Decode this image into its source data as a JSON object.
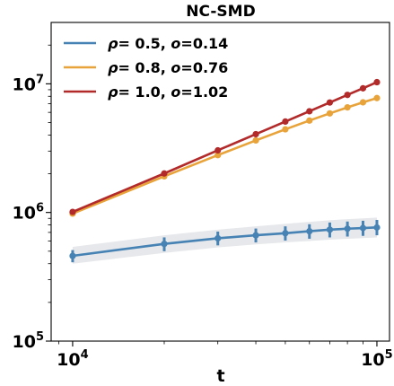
{
  "chart_data": {
    "type": "line",
    "title": "NC-SMD",
    "xlabel": "t",
    "ylabel": "",
    "xscale": "log",
    "yscale": "log",
    "xlim": [
      8500,
      110000
    ],
    "ylim": [
      100000,
      30000000
    ],
    "x_ticks": [
      {
        "value": 10000,
        "base": "10",
        "exp": "4"
      },
      {
        "value": 100000,
        "base": "10",
        "exp": "5"
      }
    ],
    "y_ticks": [
      {
        "value": 100000,
        "base": "10",
        "exp": "5"
      },
      {
        "value": 1000000,
        "base": "10",
        "exp": "6"
      },
      {
        "value": 10000000,
        "base": "10",
        "exp": "7"
      }
    ],
    "grid": false,
    "legend_position": "top-left",
    "x": [
      10000,
      20000,
      30000,
      40000,
      50000,
      60000,
      70000,
      80000,
      90000,
      100000
    ],
    "series": [
      {
        "name": "ρ= 0.5, o=0.14",
        "rho": "0.5",
        "o": "0.14",
        "color": "#4682b4",
        "values": [
          460000,
          570000,
          630000,
          665000,
          690000,
          715000,
          735000,
          748000,
          757000,
          765000
        ],
        "error_low": [
          410000,
          500000,
          555000,
          585000,
          605000,
          625000,
          640000,
          650000,
          658000,
          665000
        ],
        "error_high": [
          510000,
          640000,
          710000,
          750000,
          780000,
          810000,
          835000,
          850000,
          862000,
          875000
        ],
        "band_low": [
          400000,
          485000,
          535000,
          565000,
          585000,
          600000,
          615000,
          625000,
          632000,
          640000
        ],
        "band_high": [
          540000,
          665000,
          735000,
          780000,
          815000,
          845000,
          870000,
          888000,
          900000,
          912000
        ]
      },
      {
        "name": "ρ= 0.8, o=0.76",
        "rho": "0.8",
        "o": "0.76",
        "color": "#e8a33a",
        "values": [
          980000,
          1910000,
          2790000,
          3630000,
          4430000,
          5180000,
          5890000,
          6560000,
          7180000,
          7750000
        ]
      },
      {
        "name": "ρ= 1.0, o=1.02",
        "rho": "1.0",
        "o": "1.02",
        "color": "#b22a2a",
        "values": [
          1010000,
          2010000,
          3040000,
          4060000,
          5090000,
          6120000,
          7160000,
          8200000,
          9230000,
          10300000
        ]
      }
    ]
  }
}
